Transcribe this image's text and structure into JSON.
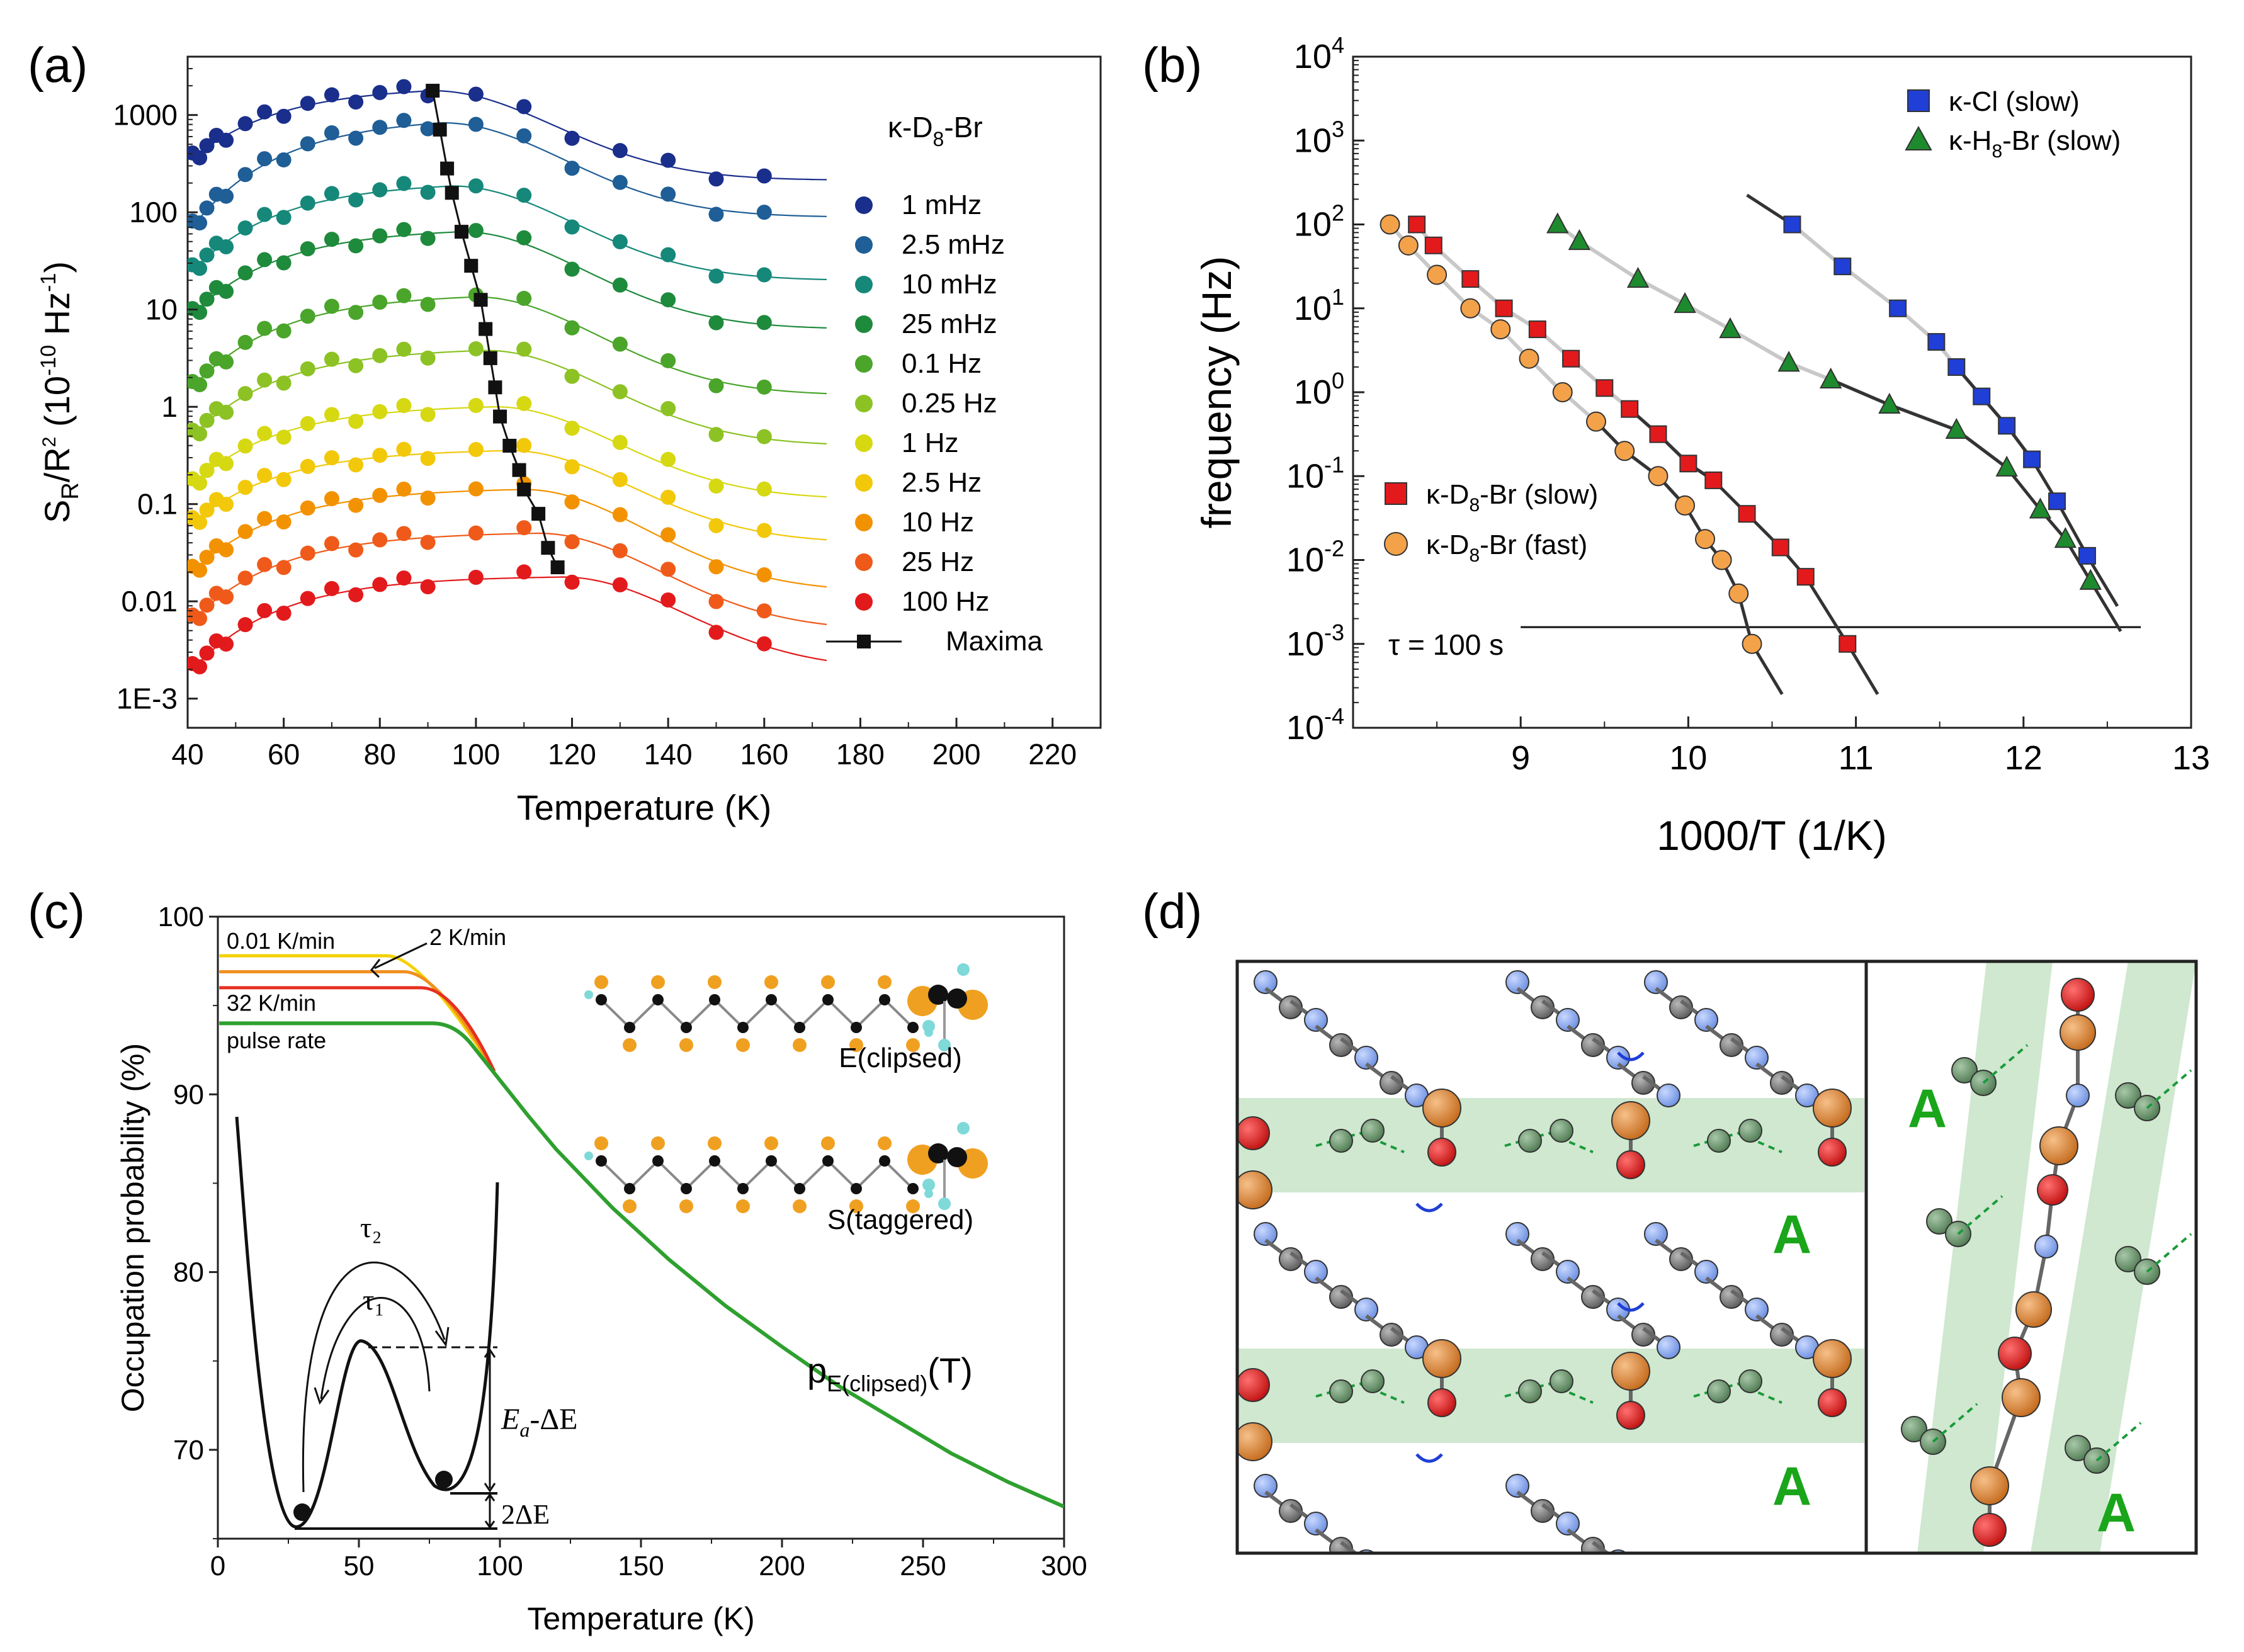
{
  "chart_data": [
    {
      "panel": "(a)",
      "type": "scatter",
      "xlabel": "Temperature (K)",
      "ylabel_main": "S",
      "ylabel_sub": "R",
      "ylabel_rest": "/R",
      "ylabel_sup": "2",
      "ylabel_unit_a": " (10",
      "ylabel_unit_sup": "-10",
      "ylabel_unit_b": " Hz",
      "ylabel_unit_sup2": "-1",
      "ylabel_unit_c": ")",
      "xlim": [
        40,
        230
      ],
      "ylim_log10": [
        -3.3,
        3.6
      ],
      "xticks": [
        40,
        60,
        80,
        100,
        120,
        140,
        160,
        180,
        200,
        220
      ],
      "yticks": [
        {
          "exp": -3,
          "label": "1E-3"
        },
        {
          "exp": -2,
          "label": "0.01"
        },
        {
          "exp": -1,
          "label": "0.1"
        },
        {
          "exp": 0,
          "label": "1"
        },
        {
          "exp": 1,
          "label": "10"
        },
        {
          "exp": 2,
          "label": "100"
        },
        {
          "exp": 3,
          "label": "1000"
        }
      ],
      "title_main": "κ-D",
      "title_sub": "8",
      "title_rest": "-Br",
      "series": [
        {
          "name": "1 mHz",
          "color": "#1a2e8c",
          "peak_T": 91,
          "peak_log": 3.25,
          "base_log": 2.33,
          "left_log": 2.55
        },
        {
          "name": "2.5 mHz",
          "color": "#1f5e96",
          "peak_T": 93,
          "peak_log": 2.92,
          "base_log": 1.95,
          "left_log": 1.85
        },
        {
          "name": "10 mHz",
          "color": "#16887a",
          "peak_T": 95,
          "peak_log": 2.27,
          "base_log": 1.3,
          "left_log": 1.4
        },
        {
          "name": "25 mHz",
          "color": "#1e8a3c",
          "peak_T": 97,
          "peak_log": 1.8,
          "base_log": 0.8,
          "left_log": 0.95
        },
        {
          "name": "0.1 Hz",
          "color": "#4aa52a",
          "peak_T": 100,
          "peak_log": 1.13,
          "base_log": 0.12,
          "left_log": 0.2
        },
        {
          "name": "0.25 Hz",
          "color": "#8cc224",
          "peak_T": 102,
          "peak_log": 0.58,
          "base_log": -0.4,
          "left_log": -0.3
        },
        {
          "name": "1 Hz",
          "color": "#d6d812",
          "peak_T": 104,
          "peak_log": 0.0,
          "base_log": -0.95,
          "left_log": -0.8
        },
        {
          "name": "2.5 Hz",
          "color": "#f2c80a",
          "peak_T": 107,
          "peak_log": -0.45,
          "base_log": -1.4,
          "left_log": -1.2
        },
        {
          "name": "10 Hz",
          "color": "#f39200",
          "peak_T": 110,
          "peak_log": -0.85,
          "base_log": -1.9,
          "left_log": -1.7
        },
        {
          "name": "25 Hz",
          "color": "#ef5a1a",
          "peak_T": 113,
          "peak_log": -1.3,
          "base_log": -2.3,
          "left_log": -2.2
        },
        {
          "name": "100 Hz",
          "color": "#e31a1c",
          "peak_T": 118,
          "peak_log": -1.75,
          "base_log": -2.7,
          "left_log": -2.7
        }
      ],
      "maxima": {
        "name": "Maxima",
        "T": [
          91,
          92.5,
          94,
          95,
          97,
          99,
          101,
          102,
          103,
          104,
          105,
          107,
          109,
          110,
          113,
          115,
          117
        ],
        "log_S": [
          3.25,
          2.85,
          2.45,
          2.2,
          1.8,
          1.45,
          1.1,
          0.8,
          0.5,
          0.2,
          -0.1,
          -0.4,
          -0.65,
          -0.85,
          -1.1,
          -1.45,
          -1.65
        ]
      }
    },
    {
      "panel": "(b)",
      "type": "scatter",
      "xlabel": "1000/T (1/K)",
      "ylabel": "frequency (Hz)",
      "xlim": [
        8.0,
        13.0
      ],
      "ylim_log10": [
        -4,
        4
      ],
      "xticks": [
        9,
        10,
        11,
        12,
        13
      ],
      "yticks_exp": [
        -4,
        -3,
        -2,
        -1,
        0,
        1,
        2,
        3,
        4
      ],
      "tau_label": "τ = 100 s",
      "tau_line_log": -2.8,
      "tau_line_x": [
        9.0,
        12.7
      ],
      "series": [
        {
          "name_main": "κ-D",
          "name_sub": "8",
          "name_rest": "-Br (slow)",
          "marker": "square",
          "color": "#e31a1c",
          "x": [
            8.38,
            8.48,
            8.7,
            8.9,
            9.1,
            9.3,
            9.5,
            9.65,
            9.82,
            10.0,
            10.15,
            10.35,
            10.55,
            10.7,
            10.95
          ],
          "log_y": [
            2.0,
            1.75,
            1.35,
            1.0,
            0.75,
            0.4,
            0.05,
            -0.2,
            -0.5,
            -0.85,
            -1.05,
            -1.45,
            -1.85,
            -2.2,
            -3.0
          ]
        },
        {
          "name_main": "κ-D",
          "name_sub": "8",
          "name_rest": "-Br (fast)",
          "marker": "circle",
          "color": "#f4a24a",
          "x": [
            8.22,
            8.33,
            8.5,
            8.7,
            8.88,
            9.05,
            9.25,
            9.45,
            9.62,
            9.82,
            9.98,
            10.1,
            10.2,
            10.3,
            10.38
          ],
          "log_y": [
            2.0,
            1.75,
            1.4,
            1.0,
            0.75,
            0.4,
            0.0,
            -0.35,
            -0.7,
            -1.0,
            -1.35,
            -1.75,
            -2.0,
            -2.4,
            -3.0
          ]
        },
        {
          "name_main": "κ-Cl (slow)",
          "name_sub": "",
          "name_rest": "",
          "marker": "square",
          "color": "#1f3fd6",
          "x": [
            10.62,
            10.92,
            11.25,
            11.48,
            11.6,
            11.75,
            11.9,
            12.05,
            12.2,
            12.38
          ],
          "log_y": [
            2.0,
            1.5,
            1.0,
            0.6,
            0.3,
            -0.05,
            -0.4,
            -0.8,
            -1.3,
            -1.95
          ]
        },
        {
          "name_main": "κ-H",
          "name_sub": "8",
          "name_rest": "-Br (slow)",
          "marker": "triangle",
          "color": "#1e8a2e",
          "x": [
            9.22,
            9.35,
            9.7,
            9.98,
            10.25,
            10.6,
            10.85,
            11.2,
            11.6,
            11.9,
            12.1,
            12.25,
            12.4
          ],
          "log_y": [
            2.0,
            1.8,
            1.35,
            1.05,
            0.75,
            0.35,
            0.15,
            -0.15,
            -0.45,
            -0.9,
            -1.4,
            -1.75,
            -2.25
          ]
        }
      ]
    },
    {
      "panel": "(c)",
      "type": "line",
      "xlabel": "Temperature (K)",
      "ylabel": "Occupation probability (%)",
      "xlim": [
        0,
        300
      ],
      "ylim": [
        65,
        100
      ],
      "xticks": [
        0,
        50,
        100,
        150,
        200,
        250,
        300
      ],
      "yticks": [
        70,
        80,
        90,
        100
      ],
      "curve_label_main": "p",
      "curve_label_sub": "E(clipsed)",
      "curve_label_rest": "(T)",
      "series": [
        {
          "name": "0.01 K/min",
          "color": "#f5d000",
          "plateau": 97.8,
          "break_T": 60
        },
        {
          "name": "2 K/min",
          "color": "#f09020",
          "plateau": 96.9,
          "break_T": 66
        },
        {
          "name": "32 K/min",
          "color": "#e63020",
          "plateau": 96.0,
          "break_T": 72
        },
        {
          "name": "pulse rate",
          "color": "#2ea02e",
          "plateau": 94.0,
          "break_T": 80
        }
      ],
      "equilibrium_curve": {
        "T": [
          80,
          90,
          100,
          110,
          120,
          140,
          160,
          180,
          200,
          220,
          240,
          260,
          280,
          300
        ],
        "p": [
          94.0,
          92.8,
          90.8,
          88.8,
          86.9,
          83.6,
          80.7,
          78.1,
          75.8,
          73.6,
          71.7,
          69.8,
          68.2,
          66.8
        ]
      },
      "annotations": {
        "inset_tau2": "τ₂",
        "inset_tau1": "τ₁",
        "inset_barrier": "E",
        "inset_barrier_sub": "a",
        "inset_barrier_rest": "-ΔE",
        "inset_gap": "2ΔE",
        "molecule_top": "E(clipsed)",
        "molecule_bottom": "S(taggered)"
      }
    },
    {
      "panel": "(d)",
      "type": "other",
      "labels": [
        "A",
        "A",
        "A",
        "A"
      ]
    }
  ],
  "panel_labels": [
    "(a)",
    "(b)",
    "(c)",
    "(d)"
  ]
}
